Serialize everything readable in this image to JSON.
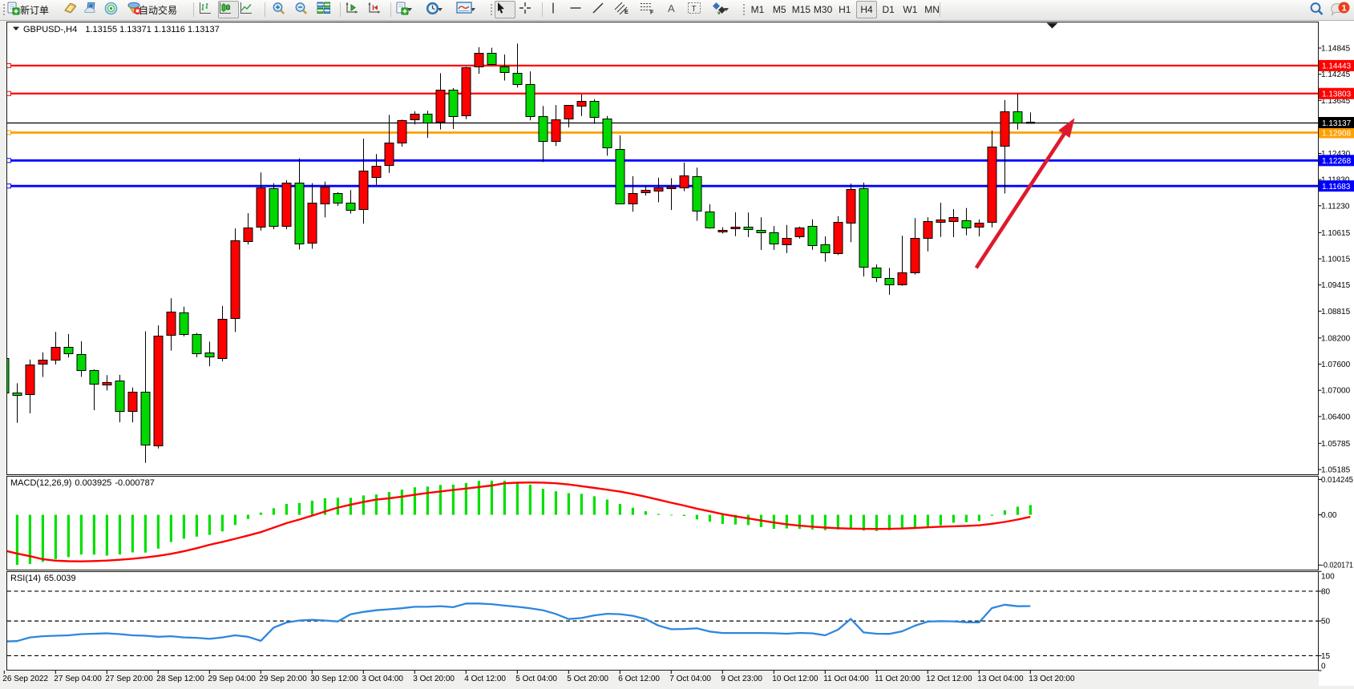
{
  "app": {
    "toolbar": {
      "new_order_label": "新订单",
      "autotrading_label": "自动交易",
      "timeframes": [
        "M1",
        "M5",
        "M15",
        "M30",
        "H1",
        "H4",
        "D1",
        "W1",
        "MN"
      ],
      "active_timeframe": "H4",
      "notification_count": "1"
    }
  },
  "chart_window": {
    "title_symbol": "GBPUSD-,H4",
    "title_ohlc": "1.13155 1.13371 1.13116 1.13137",
    "ohlc": {
      "open": "1.13155",
      "high": "1.13371",
      "low": "1.13116",
      "close": "1.13137"
    }
  },
  "chart_data": {
    "type": "candlestick",
    "symbol": "GBPUSD-",
    "period": "H4",
    "ylim": [
      1.04737,
      1.15433
    ],
    "price_axis_ticks": [
      "1.14845",
      "1.14245",
      "1.13645",
      "1.12430",
      "1.11830",
      "1.11230",
      "1.10615",
      "1.10015",
      "1.09415",
      "1.08815",
      "1.08200",
      "1.07600",
      "1.07000",
      "1.06400",
      "1.05785",
      "1.05185"
    ],
    "time_axis_labels": [
      "26 Sep 2022",
      "27 Sep 04:00",
      "27 Sep 20:00",
      "28 Sep 12:00",
      "29 Sep 04:00",
      "29 Sep 20:00",
      "30 Sep 12:00",
      "3 Oct 04:00",
      "3 Oct 20:00",
      "4 Oct 12:00",
      "5 Oct 04:00",
      "5 Oct 20:00",
      "6 Oct 12:00",
      "7 Oct 04:00",
      "9 Oct 23:00",
      "10 Oct 12:00",
      "11 Oct 04:00",
      "11 Oct 20:00",
      "12 Oct 12:00",
      "13 Oct 04:00",
      "13 Oct 20:00"
    ],
    "bars_per_label": 4,
    "hlines": [
      {
        "price": 1.14443,
        "label": "1.14443",
        "color": "#ff0000",
        "width": 2.2
      },
      {
        "price": 1.13803,
        "label": "1.13803",
        "color": "#ff0000",
        "width": 2.2
      },
      {
        "price": 1.12908,
        "label": "1.12908",
        "color": "#ff9f00",
        "width": 2.8
      },
      {
        "price": 1.12268,
        "label": "1.12268",
        "color": "#0000ff",
        "width": 2.8
      },
      {
        "price": 1.11683,
        "label": "1.11683",
        "color": "#0000ff",
        "width": 2.8
      }
    ],
    "price_line": {
      "price": 1.13137,
      "label": "1.13137",
      "color": "#000000"
    },
    "candles": [
      {
        "o": 1.07741,
        "h": 1.07741,
        "l": 1.06325,
        "c": 1.06943,
        "d": "down"
      },
      {
        "o": 1.06943,
        "h": 1.07161,
        "l": 1.06254,
        "c": 1.06887,
        "d": "down"
      },
      {
        "o": 1.06924,
        "h": 1.07705,
        "l": 1.06471,
        "c": 1.07596,
        "d": "up"
      },
      {
        "o": 1.07615,
        "h": 1.07868,
        "l": 1.07306,
        "c": 1.07705,
        "d": "up"
      },
      {
        "o": 1.07696,
        "h": 1.0834,
        "l": 1.07593,
        "c": 1.07988,
        "d": "up"
      },
      {
        "o": 1.07995,
        "h": 1.08292,
        "l": 1.07751,
        "c": 1.07842,
        "d": "down"
      },
      {
        "o": 1.07835,
        "h": 1.08125,
        "l": 1.07308,
        "c": 1.0746,
        "d": "down"
      },
      {
        "o": 1.07455,
        "h": 1.07482,
        "l": 1.06544,
        "c": 1.07141,
        "d": "down"
      },
      {
        "o": 1.07134,
        "h": 1.07348,
        "l": 1.06996,
        "c": 1.07189,
        "d": "up"
      },
      {
        "o": 1.07218,
        "h": 1.07354,
        "l": 1.06267,
        "c": 1.06516,
        "d": "down"
      },
      {
        "o": 1.06516,
        "h": 1.07066,
        "l": 1.06267,
        "c": 1.06961,
        "d": "up"
      },
      {
        "o": 1.06968,
        "h": 1.08353,
        "l": 1.05337,
        "c": 1.05751,
        "d": "down"
      },
      {
        "o": 1.05749,
        "h": 1.08487,
        "l": 1.05666,
        "c": 1.08257,
        "d": "up"
      },
      {
        "o": 1.08257,
        "h": 1.09111,
        "l": 1.0791,
        "c": 1.08796,
        "d": "up"
      },
      {
        "o": 1.08777,
        "h": 1.08915,
        "l": 1.08237,
        "c": 1.08272,
        "d": "down"
      },
      {
        "o": 1.08285,
        "h": 1.08314,
        "l": 1.07756,
        "c": 1.07853,
        "d": "down"
      },
      {
        "o": 1.07861,
        "h": 1.08114,
        "l": 1.07552,
        "c": 1.07776,
        "d": "down"
      },
      {
        "o": 1.07738,
        "h": 1.08937,
        "l": 1.07661,
        "c": 1.08641,
        "d": "up"
      },
      {
        "o": 1.08656,
        "h": 1.10711,
        "l": 1.08338,
        "c": 1.1043,
        "d": "up"
      },
      {
        "o": 1.10421,
        "h": 1.1106,
        "l": 1.1034,
        "c": 1.1074,
        "d": "up"
      },
      {
        "o": 1.1075,
        "h": 1.11993,
        "l": 1.1066,
        "c": 1.11653,
        "d": "up"
      },
      {
        "o": 1.11637,
        "h": 1.11749,
        "l": 1.10693,
        "c": 1.10766,
        "d": "down"
      },
      {
        "o": 1.10772,
        "h": 1.11817,
        "l": 1.10693,
        "c": 1.11758,
        "d": "up"
      },
      {
        "o": 1.11763,
        "h": 1.12318,
        "l": 1.10228,
        "c": 1.10371,
        "d": "down"
      },
      {
        "o": 1.10388,
        "h": 1.11749,
        "l": 1.10245,
        "c": 1.11301,
        "d": "up"
      },
      {
        "o": 1.11282,
        "h": 1.11785,
        "l": 1.10964,
        "c": 1.11661,
        "d": "up"
      },
      {
        "o": 1.11521,
        "h": 1.11539,
        "l": 1.11225,
        "c": 1.11308,
        "d": "down"
      },
      {
        "o": 1.11308,
        "h": 1.11589,
        "l": 1.11051,
        "c": 1.11143,
        "d": "down"
      },
      {
        "o": 1.11154,
        "h": 1.12768,
        "l": 1.10818,
        "c": 1.12035,
        "d": "up"
      },
      {
        "o": 1.1189,
        "h": 1.12417,
        "l": 1.11708,
        "c": 1.12144,
        "d": "up"
      },
      {
        "o": 1.12162,
        "h": 1.13313,
        "l": 1.11982,
        "c": 1.12671,
        "d": "up"
      },
      {
        "o": 1.12678,
        "h": 1.13207,
        "l": 1.12586,
        "c": 1.13196,
        "d": "up"
      },
      {
        "o": 1.13214,
        "h": 1.13396,
        "l": 1.13095,
        "c": 1.13334,
        "d": "up"
      },
      {
        "o": 1.13348,
        "h": 1.13407,
        "l": 1.12786,
        "c": 1.13154,
        "d": "down"
      },
      {
        "o": 1.13144,
        "h": 1.14268,
        "l": 1.12979,
        "c": 1.13886,
        "d": "up"
      },
      {
        "o": 1.13888,
        "h": 1.1393,
        "l": 1.1299,
        "c": 1.13284,
        "d": "down"
      },
      {
        "o": 1.13312,
        "h": 1.14413,
        "l": 1.13214,
        "c": 1.14413,
        "d": "up"
      },
      {
        "o": 1.14421,
        "h": 1.14865,
        "l": 1.14255,
        "c": 1.14727,
        "d": "up"
      },
      {
        "o": 1.14735,
        "h": 1.14852,
        "l": 1.1445,
        "c": 1.14478,
        "d": "down"
      },
      {
        "o": 1.14426,
        "h": 1.14698,
        "l": 1.14101,
        "c": 1.14296,
        "d": "down"
      },
      {
        "o": 1.14283,
        "h": 1.14948,
        "l": 1.13941,
        "c": 1.14033,
        "d": "down"
      },
      {
        "o": 1.14024,
        "h": 1.14311,
        "l": 1.13187,
        "c": 1.13284,
        "d": "down"
      },
      {
        "o": 1.1328,
        "h": 1.13519,
        "l": 1.12233,
        "c": 1.12711,
        "d": "down"
      },
      {
        "o": 1.1272,
        "h": 1.13539,
        "l": 1.12599,
        "c": 1.13211,
        "d": "up"
      },
      {
        "o": 1.13229,
        "h": 1.13541,
        "l": 1.13025,
        "c": 1.13534,
        "d": "up"
      },
      {
        "o": 1.1351,
        "h": 1.13782,
        "l": 1.13289,
        "c": 1.13626,
        "d": "up"
      },
      {
        "o": 1.13626,
        "h": 1.13675,
        "l": 1.1311,
        "c": 1.13266,
        "d": "down"
      },
      {
        "o": 1.13234,
        "h": 1.13289,
        "l": 1.12377,
        "c": 1.12575,
        "d": "down"
      },
      {
        "o": 1.12535,
        "h": 1.12843,
        "l": 1.11273,
        "c": 1.11282,
        "d": "down"
      },
      {
        "o": 1.11282,
        "h": 1.11908,
        "l": 1.11095,
        "c": 1.11526,
        "d": "up"
      },
      {
        "o": 1.11532,
        "h": 1.11692,
        "l": 1.11464,
        "c": 1.11587,
        "d": "up"
      },
      {
        "o": 1.11567,
        "h": 1.11874,
        "l": 1.1131,
        "c": 1.11642,
        "d": "up"
      },
      {
        "o": 1.11627,
        "h": 1.11864,
        "l": 1.11133,
        "c": 1.11664,
        "d": "up"
      },
      {
        "o": 1.11655,
        "h": 1.12222,
        "l": 1.11565,
        "c": 1.11923,
        "d": "up"
      },
      {
        "o": 1.11903,
        "h": 1.12103,
        "l": 1.10886,
        "c": 1.11117,
        "d": "down"
      },
      {
        "o": 1.11104,
        "h": 1.11266,
        "l": 1.10707,
        "c": 1.10728,
        "d": "down"
      },
      {
        "o": 1.10647,
        "h": 1.10737,
        "l": 1.10594,
        "c": 1.10683,
        "d": "up"
      },
      {
        "o": 1.10698,
        "h": 1.1108,
        "l": 1.10533,
        "c": 1.10742,
        "d": "up"
      },
      {
        "o": 1.10742,
        "h": 1.11075,
        "l": 1.10513,
        "c": 1.10685,
        "d": "down"
      },
      {
        "o": 1.10676,
        "h": 1.10966,
        "l": 1.10219,
        "c": 1.10617,
        "d": "down"
      },
      {
        "o": 1.10623,
        "h": 1.10766,
        "l": 1.10219,
        "c": 1.10357,
        "d": "down"
      },
      {
        "o": 1.10357,
        "h": 1.1079,
        "l": 1.10147,
        "c": 1.10498,
        "d": "up"
      },
      {
        "o": 1.10537,
        "h": 1.10751,
        "l": 1.10476,
        "c": 1.10737,
        "d": "up"
      },
      {
        "o": 1.10766,
        "h": 1.1092,
        "l": 1.10221,
        "c": 1.10324,
        "d": "down"
      },
      {
        "o": 1.1034,
        "h": 1.10526,
        "l": 1.09949,
        "c": 1.10151,
        "d": "down"
      },
      {
        "o": 1.10151,
        "h": 1.1099,
        "l": 1.10099,
        "c": 1.10862,
        "d": "up"
      },
      {
        "o": 1.10852,
        "h": 1.11739,
        "l": 1.10397,
        "c": 1.1162,
        "d": "up"
      },
      {
        "o": 1.11626,
        "h": 1.11762,
        "l": 1.09607,
        "c": 1.0982,
        "d": "down"
      },
      {
        "o": 1.0982,
        "h": 1.09885,
        "l": 1.09479,
        "c": 1.09607,
        "d": "down"
      },
      {
        "o": 1.09571,
        "h": 1.09806,
        "l": 1.0919,
        "c": 1.09427,
        "d": "down"
      },
      {
        "o": 1.0942,
        "h": 1.10542,
        "l": 1.09398,
        "c": 1.09694,
        "d": "up"
      },
      {
        "o": 1.09694,
        "h": 1.10948,
        "l": 1.09655,
        "c": 1.10485,
        "d": "up"
      },
      {
        "o": 1.10494,
        "h": 1.10968,
        "l": 1.10184,
        "c": 1.10887,
        "d": "up"
      },
      {
        "o": 1.10862,
        "h": 1.11301,
        "l": 1.10516,
        "c": 1.10917,
        "d": "up"
      },
      {
        "o": 1.10889,
        "h": 1.11155,
        "l": 1.10511,
        "c": 1.10972,
        "d": "up"
      },
      {
        "o": 1.109,
        "h": 1.11178,
        "l": 1.10555,
        "c": 1.10733,
        "d": "down"
      },
      {
        "o": 1.1075,
        "h": 1.10917,
        "l": 1.10527,
        "c": 1.10845,
        "d": "up"
      },
      {
        "o": 1.1086,
        "h": 1.12955,
        "l": 1.10733,
        "c": 1.12582,
        "d": "up"
      },
      {
        "o": 1.12599,
        "h": 1.13655,
        "l": 1.11512,
        "c": 1.13389,
        "d": "up"
      },
      {
        "o": 1.134,
        "h": 1.13789,
        "l": 1.12977,
        "c": 1.13139,
        "d": "down"
      },
      {
        "o": 1.13155,
        "h": 1.13371,
        "l": 1.13116,
        "c": 1.13137,
        "d": "flat"
      }
    ],
    "arrow": {
      "from_bar": 75.78,
      "from_price": 1.09807,
      "to_bar": 83.45,
      "to_price": 1.13242,
      "color": "#dd1a2d"
    },
    "shift_marker_bar": 81.7
  },
  "macd": {
    "label": "MACD(12,26,9)",
    "value_main": "0.003925",
    "value_signal": "-0.000787",
    "axis_ticks": [
      {
        "text": "0.014245",
        "value": 0.014245
      },
      {
        "text": "0.00",
        "value": 0.0
      },
      {
        "text": "-0.020171",
        "value": -0.020171
      }
    ],
    "histogram": [
      -0.020318,
      -0.020125,
      -0.019739,
      -0.018901,
      -0.017839,
      -0.017002,
      -0.015939,
      -0.016003,
      -0.01639,
      -0.015939,
      -0.015102,
      -0.015166,
      -0.013588,
      -0.010916,
      -0.009596,
      -0.008758,
      -0.00805,
      -0.006665,
      -0.004089,
      -0.001674,
      0.000902,
      0.00264,
      0.004347,
      0.004766,
      0.005699,
      0.006665,
      0.006859,
      0.006859,
      0.007792,
      0.008179,
      0.009145,
      0.010111,
      0.011045,
      0.011367,
      0.012011,
      0.012139,
      0.012783,
      0.013685,
      0.013749,
      0.013685,
      0.01317,
      0.012139,
      0.010433,
      0.009467,
      0.008726,
      0.008436,
      0.00747,
      0.00615,
      0.004379,
      0.002866,
      0.001449,
      0.000386,
      3.2e-05,
      -0.000451,
      -0.001835,
      -0.002769,
      -0.003639,
      -0.003896,
      -0.004122,
      -0.004959,
      -0.005635,
      -0.005474,
      -0.005635,
      -0.005893,
      -0.00615,
      -0.005893,
      -0.005474,
      -0.006343,
      -0.006504,
      -0.00615,
      -0.005893,
      -0.005313,
      -0.004637,
      -0.004186,
      -0.003188,
      -0.002962,
      -0.002512,
      -0.000386,
      0.001803,
      0.003284,
      0.003925
    ],
    "signal": [
      -0.014329,
      -0.015553,
      -0.016615,
      -0.017839,
      -0.018418,
      -0.018644,
      -0.018708,
      -0.018579,
      -0.018386,
      -0.018064,
      -0.017646,
      -0.01713,
      -0.016486,
      -0.015681,
      -0.014651,
      -0.013427,
      -0.012043,
      -0.010884,
      -0.009628,
      -0.008308,
      -0.006955,
      -0.005152,
      -0.003349,
      -0.0019,
      -0.000322,
      0.00132,
      0.002898,
      0.004089,
      0.005152,
      0.006118,
      0.006633,
      0.007309,
      0.00805,
      0.008791,
      0.009402,
      0.009982,
      0.010562,
      0.011173,
      0.011785,
      0.012687,
      0.012912,
      0.013009,
      0.012944,
      0.012687,
      0.012204,
      0.011528,
      0.010819,
      0.010111,
      0.009338,
      0.008372,
      0.007309,
      0.006086,
      0.004862,
      0.003735,
      0.002479,
      0.001417,
      0.00029,
      -0.00058,
      -0.001449,
      -0.002286,
      -0.003091,
      -0.0038,
      -0.004347,
      -0.004766,
      -0.00512,
      -0.005377,
      -0.005538,
      -0.005635,
      -0.005667,
      -0.005635,
      -0.005506,
      -0.005281,
      -0.005023,
      -0.004766,
      -0.004605,
      -0.004444,
      -0.004218,
      -0.003606,
      -0.002866,
      -0.0019,
      -0.000787
    ]
  },
  "rsi": {
    "label": "RSI(14)",
    "value": "65.0039",
    "axis_ticks": [
      {
        "text": "100",
        "value": 100
      },
      {
        "text": "80",
        "value": 80
      },
      {
        "text": "50",
        "value": 50
      },
      {
        "text": "15",
        "value": 15
      },
      {
        "text": "0",
        "value": 0
      }
    ],
    "levels": [
      80,
      50,
      15
    ],
    "values": [
      29.3215,
      29.7254,
      33.441,
      34.6527,
      35.1373,
      35.5412,
      36.7528,
      37.1567,
      37.5606,
      36.7528,
      35.5412,
      35.1373,
      34.0872,
      34.6527,
      33.441,
      33.0372,
      31.9871,
      33.441,
      35.5412,
      34.0872,
      29.9677,
      43.2956,
      48.4653,
      50.4847,
      51.1309,
      50.4847,
      49.5153,
      56.7044,
      59.1276,
      60.8239,
      61.7932,
      62.8433,
      64.2973,
      64.2973,
      64.9435,
      63.8934,
      67.609,
      67.609,
      66.9628,
      65.5089,
      64.2973,
      62.8433,
      60.8239,
      57.1082,
      51.9386,
      52.9887,
      55.6543,
      57.2698,
      56.8659,
      55.2504,
      51.9386,
      45.3958,
      41.6801,
      41.9225,
      42.5687,
      39.3376,
      37.8837,
      37.8837,
      37.8837,
      37.8837,
      37.6414,
      37.1567,
      37.9645,
      37.5606,
      35.5412,
      41.1955,
      52.1002,
      38.4491,
      37.1567,
      36.9952,
      39.58,
      45.2342,
      49.3538,
      49.8384,
      49.5961,
      48.7076,
      48.546,
      63.0048,
      66.3974,
      64.8627,
      65.0039
    ]
  },
  "colors": {
    "bull_body": "#ff0000",
    "bear_body": "#00d800",
    "doji": "#000000",
    "wick": "#000000",
    "macd_histogram": "#00e000",
    "macd_signal": "#ff0000",
    "rsi_line": "#2e86df",
    "axis_text": "#000000",
    "window_bg": "#ffffff",
    "frame": "#000000",
    "badge_text": "#ffffff",
    "arrow": "#dd1a2d"
  }
}
